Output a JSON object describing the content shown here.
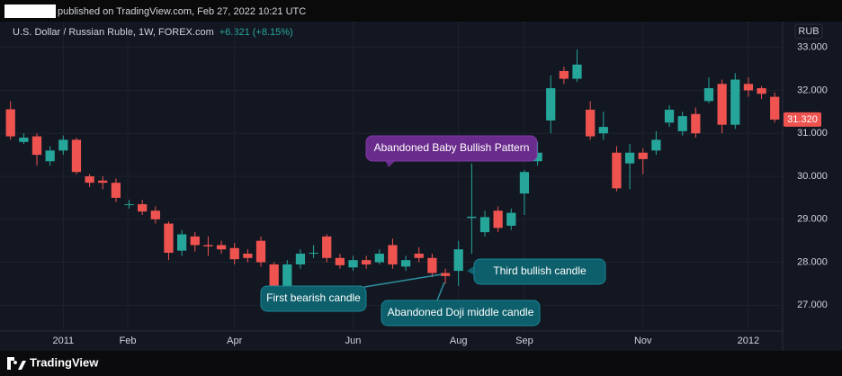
{
  "header": {
    "published": "published on TradingView.com, Feb 27, 2022 10:21 UTC",
    "symbol": "U.S. Dollar / Russian Ruble, 1W, FOREX.com",
    "change": "+6.321 (+8.15%)",
    "currency": "RUB"
  },
  "footer": {
    "brand": "TradingView"
  },
  "chart_data": {
    "type": "candlestick",
    "up_color": "#26a69a",
    "down_color": "#ef5350",
    "open": [
      31.56,
      30.8,
      30.93,
      30.35,
      30.6,
      30.85,
      30.0,
      29.9,
      29.85,
      29.33,
      29.35,
      29.2,
      28.9,
      28.27,
      28.6,
      28.4,
      28.4,
      28.33,
      28.2,
      28.5,
      27.95,
      27.4,
      27.95,
      28.2,
      28.6,
      28.1,
      27.88,
      28.05,
      28.0,
      28.4,
      27.9,
      28.2,
      28.1,
      27.75,
      27.8,
      29.03,
      28.7,
      29.2,
      28.85,
      29.6,
      30.35,
      31.3,
      32.45,
      32.27,
      31.55,
      31.0,
      30.55,
      30.3,
      30.55,
      30.6,
      31.25,
      31.05,
      31.45,
      31.75,
      32.15,
      31.2,
      32.15,
      32.05,
      31.85
    ],
    "high": [
      31.75,
      31.0,
      31.0,
      30.7,
      30.95,
      30.9,
      30.05,
      30.0,
      29.95,
      29.45,
      29.45,
      29.3,
      28.95,
      28.75,
      28.7,
      28.6,
      28.5,
      28.45,
      28.3,
      28.6,
      28.0,
      28.05,
      28.3,
      28.4,
      28.65,
      28.2,
      28.15,
      28.15,
      28.3,
      28.55,
      28.15,
      28.35,
      28.2,
      27.85,
      28.5,
      30.3,
      29.2,
      29.3,
      29.25,
      30.15,
      30.8,
      32.35,
      32.55,
      32.95,
      31.75,
      31.5,
      30.7,
      30.75,
      30.65,
      31.05,
      31.65,
      31.5,
      31.6,
      32.3,
      32.25,
      32.4,
      32.3,
      32.1,
      31.95
    ],
    "low": [
      30.85,
      30.75,
      30.25,
      30.25,
      30.5,
      30.05,
      29.75,
      29.7,
      29.4,
      29.25,
      29.1,
      28.9,
      28.05,
      28.15,
      28.25,
      28.15,
      28.2,
      27.95,
      28.0,
      27.9,
      27.35,
      27.3,
      27.85,
      28.1,
      28.0,
      27.85,
      27.8,
      27.85,
      27.95,
      27.85,
      27.8,
      28.0,
      27.65,
      27.5,
      27.45,
      28.2,
      28.6,
      28.7,
      28.75,
      29.1,
      30.25,
      31.0,
      32.15,
      32.2,
      30.85,
      30.85,
      29.65,
      29.7,
      30.05,
      30.5,
      31.15,
      30.95,
      30.9,
      31.7,
      31.0,
      31.1,
      31.85,
      31.8,
      31.25
    ],
    "close": [
      30.93,
      30.9,
      30.5,
      30.6,
      30.85,
      30.1,
      29.85,
      29.85,
      29.5,
      29.35,
      29.18,
      29.0,
      28.22,
      28.65,
      28.4,
      28.37,
      28.3,
      28.07,
      28.1,
      28.0,
      27.45,
      27.95,
      28.2,
      28.22,
      28.1,
      27.93,
      28.05,
      27.95,
      28.2,
      27.95,
      28.05,
      28.1,
      27.75,
      27.68,
      28.3,
      29.06,
      29.05,
      28.8,
      29.15,
      30.1,
      30.55,
      32.05,
      32.27,
      32.6,
      30.93,
      31.15,
      29.72,
      30.55,
      30.4,
      30.85,
      31.55,
      31.4,
      31.0,
      32.05,
      31.2,
      32.25,
      32.0,
      31.92,
      31.32
    ],
    "xlim": [
      -0.8,
      58.6
    ],
    "xticks": [
      {
        "value": 4,
        "label": "2011"
      },
      {
        "value": 8.9,
        "label": "Feb"
      },
      {
        "value": 17,
        "label": "Apr"
      },
      {
        "value": 26,
        "label": "Jun"
      },
      {
        "value": 34,
        "label": "Aug"
      },
      {
        "value": 39,
        "label": "Sep"
      },
      {
        "value": 48,
        "label": "Nov"
      },
      {
        "value": 56,
        "label": "2012"
      }
    ],
    "ylim": [
      26.4,
      33.6
    ],
    "yticks": [
      {
        "value": 27,
        "label": "27.000"
      },
      {
        "value": 28,
        "label": "28.000"
      },
      {
        "value": 29,
        "label": "29.000"
      },
      {
        "value": 30,
        "label": "30.000"
      },
      {
        "value": 31,
        "label": "31.000"
      },
      {
        "value": 32,
        "label": "32.000"
      },
      {
        "value": 33,
        "label": "33.000"
      }
    ],
    "grid": true,
    "last_price": {
      "value": 31.32,
      "label": "31.320"
    },
    "annotations": [
      "Abandoned Baby Bullish Pattern",
      "First bearish candle",
      "Abandoned Doji middle candle",
      "Third bullish candle"
    ]
  }
}
